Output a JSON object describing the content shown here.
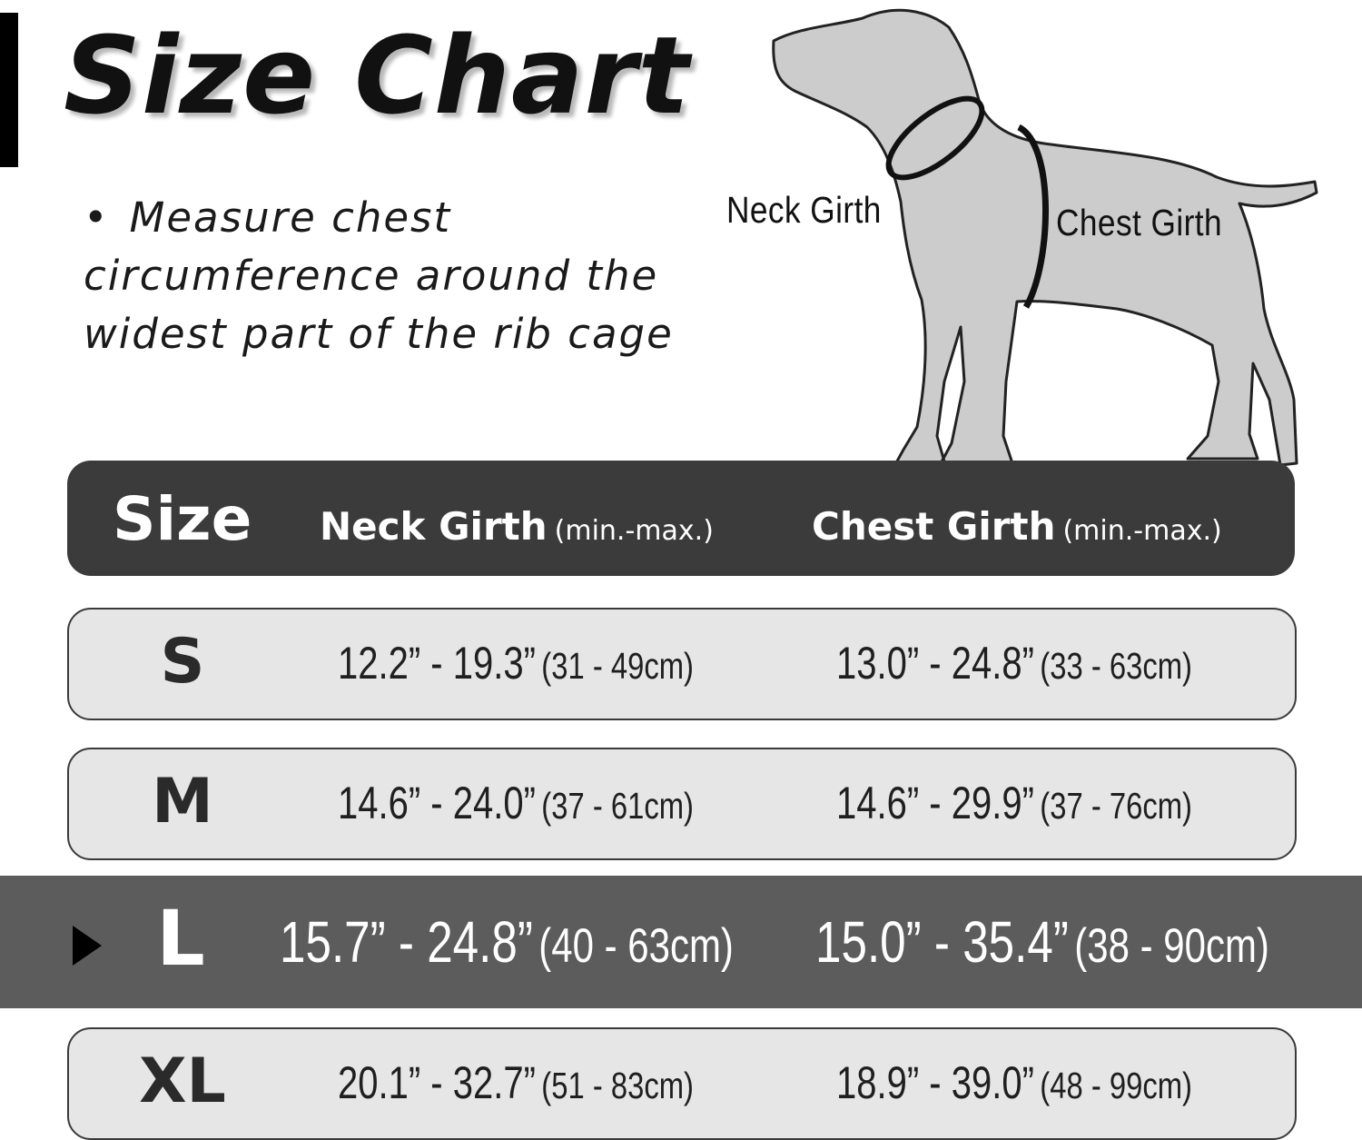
{
  "title": "Size Chart",
  "note": {
    "bullet": "•",
    "text": "Measure chest circumference around the widest part of the rib cage"
  },
  "diagram": {
    "neck_label": "Neck Girth",
    "chest_label": "Chest Girth"
  },
  "table": {
    "headers": {
      "size": "Size",
      "neck": "Neck Girth",
      "neck_unit": "(min.-max.)",
      "chest": "Chest Girth",
      "chest_unit": "(min.-max.)"
    },
    "rows": [
      {
        "size": "S",
        "neck_in": "12.2” - 19.3”",
        "neck_cm": "(31 - 49cm)",
        "chest_in": "13.0” - 24.8”",
        "chest_cm": "(33 - 63cm)",
        "highlighted": false
      },
      {
        "size": "M",
        "neck_in": "14.6” - 24.0”",
        "neck_cm": "(37 - 61cm)",
        "chest_in": "14.6” - 29.9”",
        "chest_cm": "(37 - 76cm)",
        "highlighted": false
      },
      {
        "size": "L",
        "neck_in": "15.7” - 24.8”",
        "neck_cm": "(40 - 63cm)",
        "chest_in": "15.0” - 35.4”",
        "chest_cm": "(38 - 90cm)",
        "highlighted": true
      },
      {
        "size": "XL",
        "neck_in": "20.1” - 32.7”",
        "neck_cm": "(51 - 83cm)",
        "chest_in": "18.9” - 39.0”",
        "chest_cm": "(48 - 99cm)",
        "highlighted": false
      }
    ]
  },
  "colors": {
    "header_bg": "#3b3b3b",
    "row_bg": "#e6e6e6",
    "highlight_bg": "#5c5c5c",
    "dog_fill": "#cccccc"
  }
}
